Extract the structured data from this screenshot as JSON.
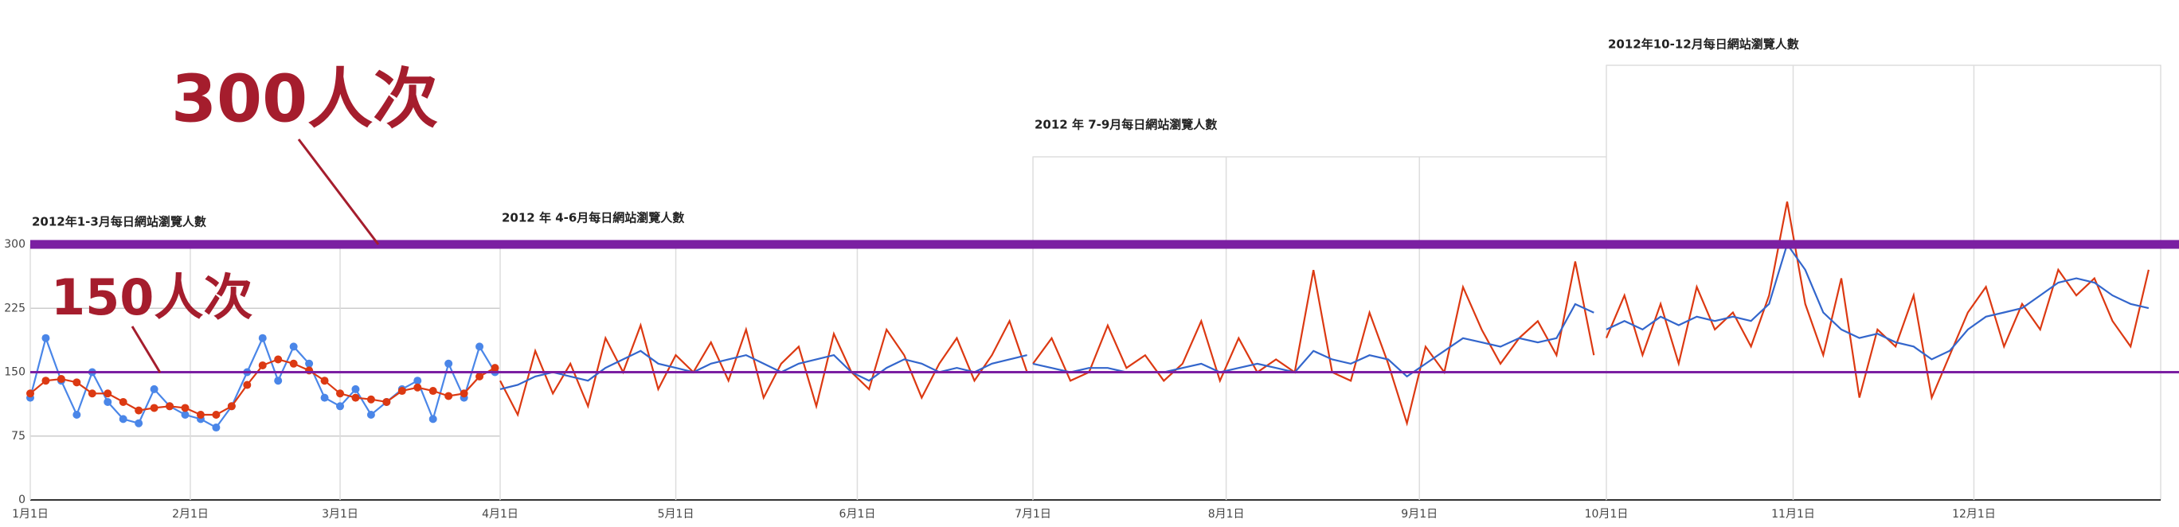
{
  "annotations": [
    {
      "text": "300人次",
      "value": 300
    },
    {
      "text": "150人次",
      "value": 150
    }
  ],
  "chart_data": [
    {
      "type": "line",
      "title": "2012年1-3月每日網站瀏覽人數",
      "grid": true,
      "xlim": [
        0,
        91
      ],
      "xticks": [
        {
          "value": 0,
          "label": "1月1日"
        },
        {
          "value": 31,
          "label": "2月1日"
        },
        {
          "value": 60,
          "label": "3月1日"
        }
      ],
      "ylim": [
        0,
        300
      ],
      "yticks": [
        0,
        75,
        150,
        225,
        300
      ],
      "x": [
        0,
        3,
        6,
        9,
        12,
        15,
        18,
        21,
        24,
        27,
        30,
        33,
        36,
        39,
        42,
        45,
        48,
        51,
        54,
        57,
        60,
        63,
        66,
        69,
        72,
        75,
        78,
        81,
        84,
        87,
        90
      ],
      "series": [
        {
          "color": "#4a86e8",
          "markers": true,
          "values": [
            120,
            190,
            140,
            100,
            150,
            115,
            95,
            90,
            130,
            110,
            100,
            95,
            85,
            110,
            150,
            190,
            140,
            180,
            160,
            120,
            110,
            130,
            100,
            115,
            130,
            140,
            95,
            160,
            120,
            180,
            150
          ]
        },
        {
          "color": "#dc3912",
          "markers": true,
          "values": [
            125,
            140,
            142,
            138,
            125,
            125,
            115,
            105,
            108,
            110,
            108,
            100,
            100,
            110,
            135,
            158,
            165,
            160,
            152,
            140,
            125,
            120,
            118,
            115,
            128,
            132,
            128,
            122,
            125,
            145,
            155
          ]
        }
      ]
    },
    {
      "type": "line",
      "title": "2012 年 4-6月每日網站瀏覽人數",
      "grid": true,
      "xlim": [
        0,
        91
      ],
      "xticks": [
        {
          "value": 0,
          "label": "4月1日"
        },
        {
          "value": 30,
          "label": "5月1日"
        },
        {
          "value": 61,
          "label": "6月1日"
        }
      ],
      "ylim": [
        0,
        300
      ],
      "x": [
        0,
        3,
        6,
        9,
        12,
        15,
        18,
        21,
        24,
        27,
        30,
        33,
        36,
        39,
        42,
        45,
        48,
        51,
        54,
        57,
        60,
        63,
        66,
        69,
        72,
        75,
        78,
        81,
        84,
        87,
        90
      ],
      "series": [
        {
          "color": "#dc3912",
          "markers": false,
          "values": [
            140,
            100,
            175,
            125,
            160,
            110,
            190,
            150,
            205,
            130,
            170,
            150,
            185,
            140,
            200,
            120,
            160,
            180,
            110,
            195,
            150,
            130,
            200,
            170,
            120,
            160,
            190,
            140,
            170,
            210,
            150
          ]
        },
        {
          "color": "#3366cc",
          "markers": false,
          "values": [
            130,
            135,
            145,
            150,
            145,
            140,
            155,
            165,
            175,
            160,
            155,
            150,
            160,
            165,
            170,
            160,
            150,
            160,
            165,
            170,
            150,
            140,
            155,
            165,
            160,
            150,
            155,
            150,
            160,
            165,
            170
          ]
        }
      ]
    },
    {
      "type": "line",
      "title": "2012 年 7-9月每日網站瀏覽人數",
      "grid": true,
      "xlim": [
        0,
        92
      ],
      "xticks": [
        {
          "value": 0,
          "label": "7月1日"
        },
        {
          "value": 31,
          "label": "8月1日"
        },
        {
          "value": 62,
          "label": "9月1日"
        }
      ],
      "ylim": [
        0,
        403
      ],
      "x": [
        0,
        3,
        6,
        9,
        12,
        15,
        18,
        21,
        24,
        27,
        30,
        33,
        36,
        39,
        42,
        45,
        48,
        51,
        54,
        57,
        60,
        63,
        66,
        69,
        72,
        75,
        78,
        81,
        84,
        87,
        90
      ],
      "series": [
        {
          "color": "#dc3912",
          "markers": false,
          "values": [
            160,
            190,
            140,
            150,
            205,
            155,
            170,
            140,
            160,
            210,
            140,
            190,
            150,
            165,
            150,
            270,
            150,
            140,
            220,
            160,
            90,
            180,
            150,
            250,
            200,
            160,
            190,
            210,
            170,
            280,
            170
          ]
        },
        {
          "color": "#3366cc",
          "markers": false,
          "values": [
            160,
            155,
            150,
            155,
            155,
            150,
            150,
            150,
            155,
            160,
            150,
            155,
            160,
            155,
            150,
            175,
            165,
            160,
            170,
            165,
            145,
            160,
            175,
            190,
            185,
            180,
            190,
            185,
            190,
            230,
            220
          ]
        }
      ]
    },
    {
      "type": "line",
      "title": "2012年10-12月每日網站瀏覽人數",
      "grid": true,
      "xlim": [
        0,
        92
      ],
      "xticks": [
        {
          "value": 0,
          "label": "10月1日"
        },
        {
          "value": 31,
          "label": "11月1日"
        },
        {
          "value": 61,
          "label": "12月1日"
        }
      ],
      "ylim": [
        0,
        510
      ],
      "x": [
        0,
        3,
        6,
        9,
        12,
        15,
        18,
        21,
        24,
        27,
        30,
        33,
        36,
        39,
        42,
        45,
        48,
        51,
        54,
        57,
        60,
        63,
        66,
        69,
        72,
        75,
        78,
        81,
        84,
        87,
        90
      ],
      "series": [
        {
          "color": "#dc3912",
          "markers": false,
          "values": [
            190,
            240,
            170,
            230,
            160,
            250,
            200,
            220,
            180,
            240,
            350,
            230,
            170,
            260,
            120,
            200,
            180,
            240,
            120,
            170,
            220,
            250,
            180,
            230,
            200,
            270,
            240,
            260,
            210,
            180,
            270
          ]
        },
        {
          "color": "#3366cc",
          "markers": false,
          "values": [
            200,
            210,
            200,
            215,
            205,
            215,
            210,
            215,
            210,
            230,
            300,
            270,
            220,
            200,
            190,
            195,
            185,
            180,
            165,
            175,
            200,
            215,
            220,
            225,
            240,
            255,
            260,
            255,
            240,
            230,
            225
          ]
        }
      ]
    }
  ]
}
